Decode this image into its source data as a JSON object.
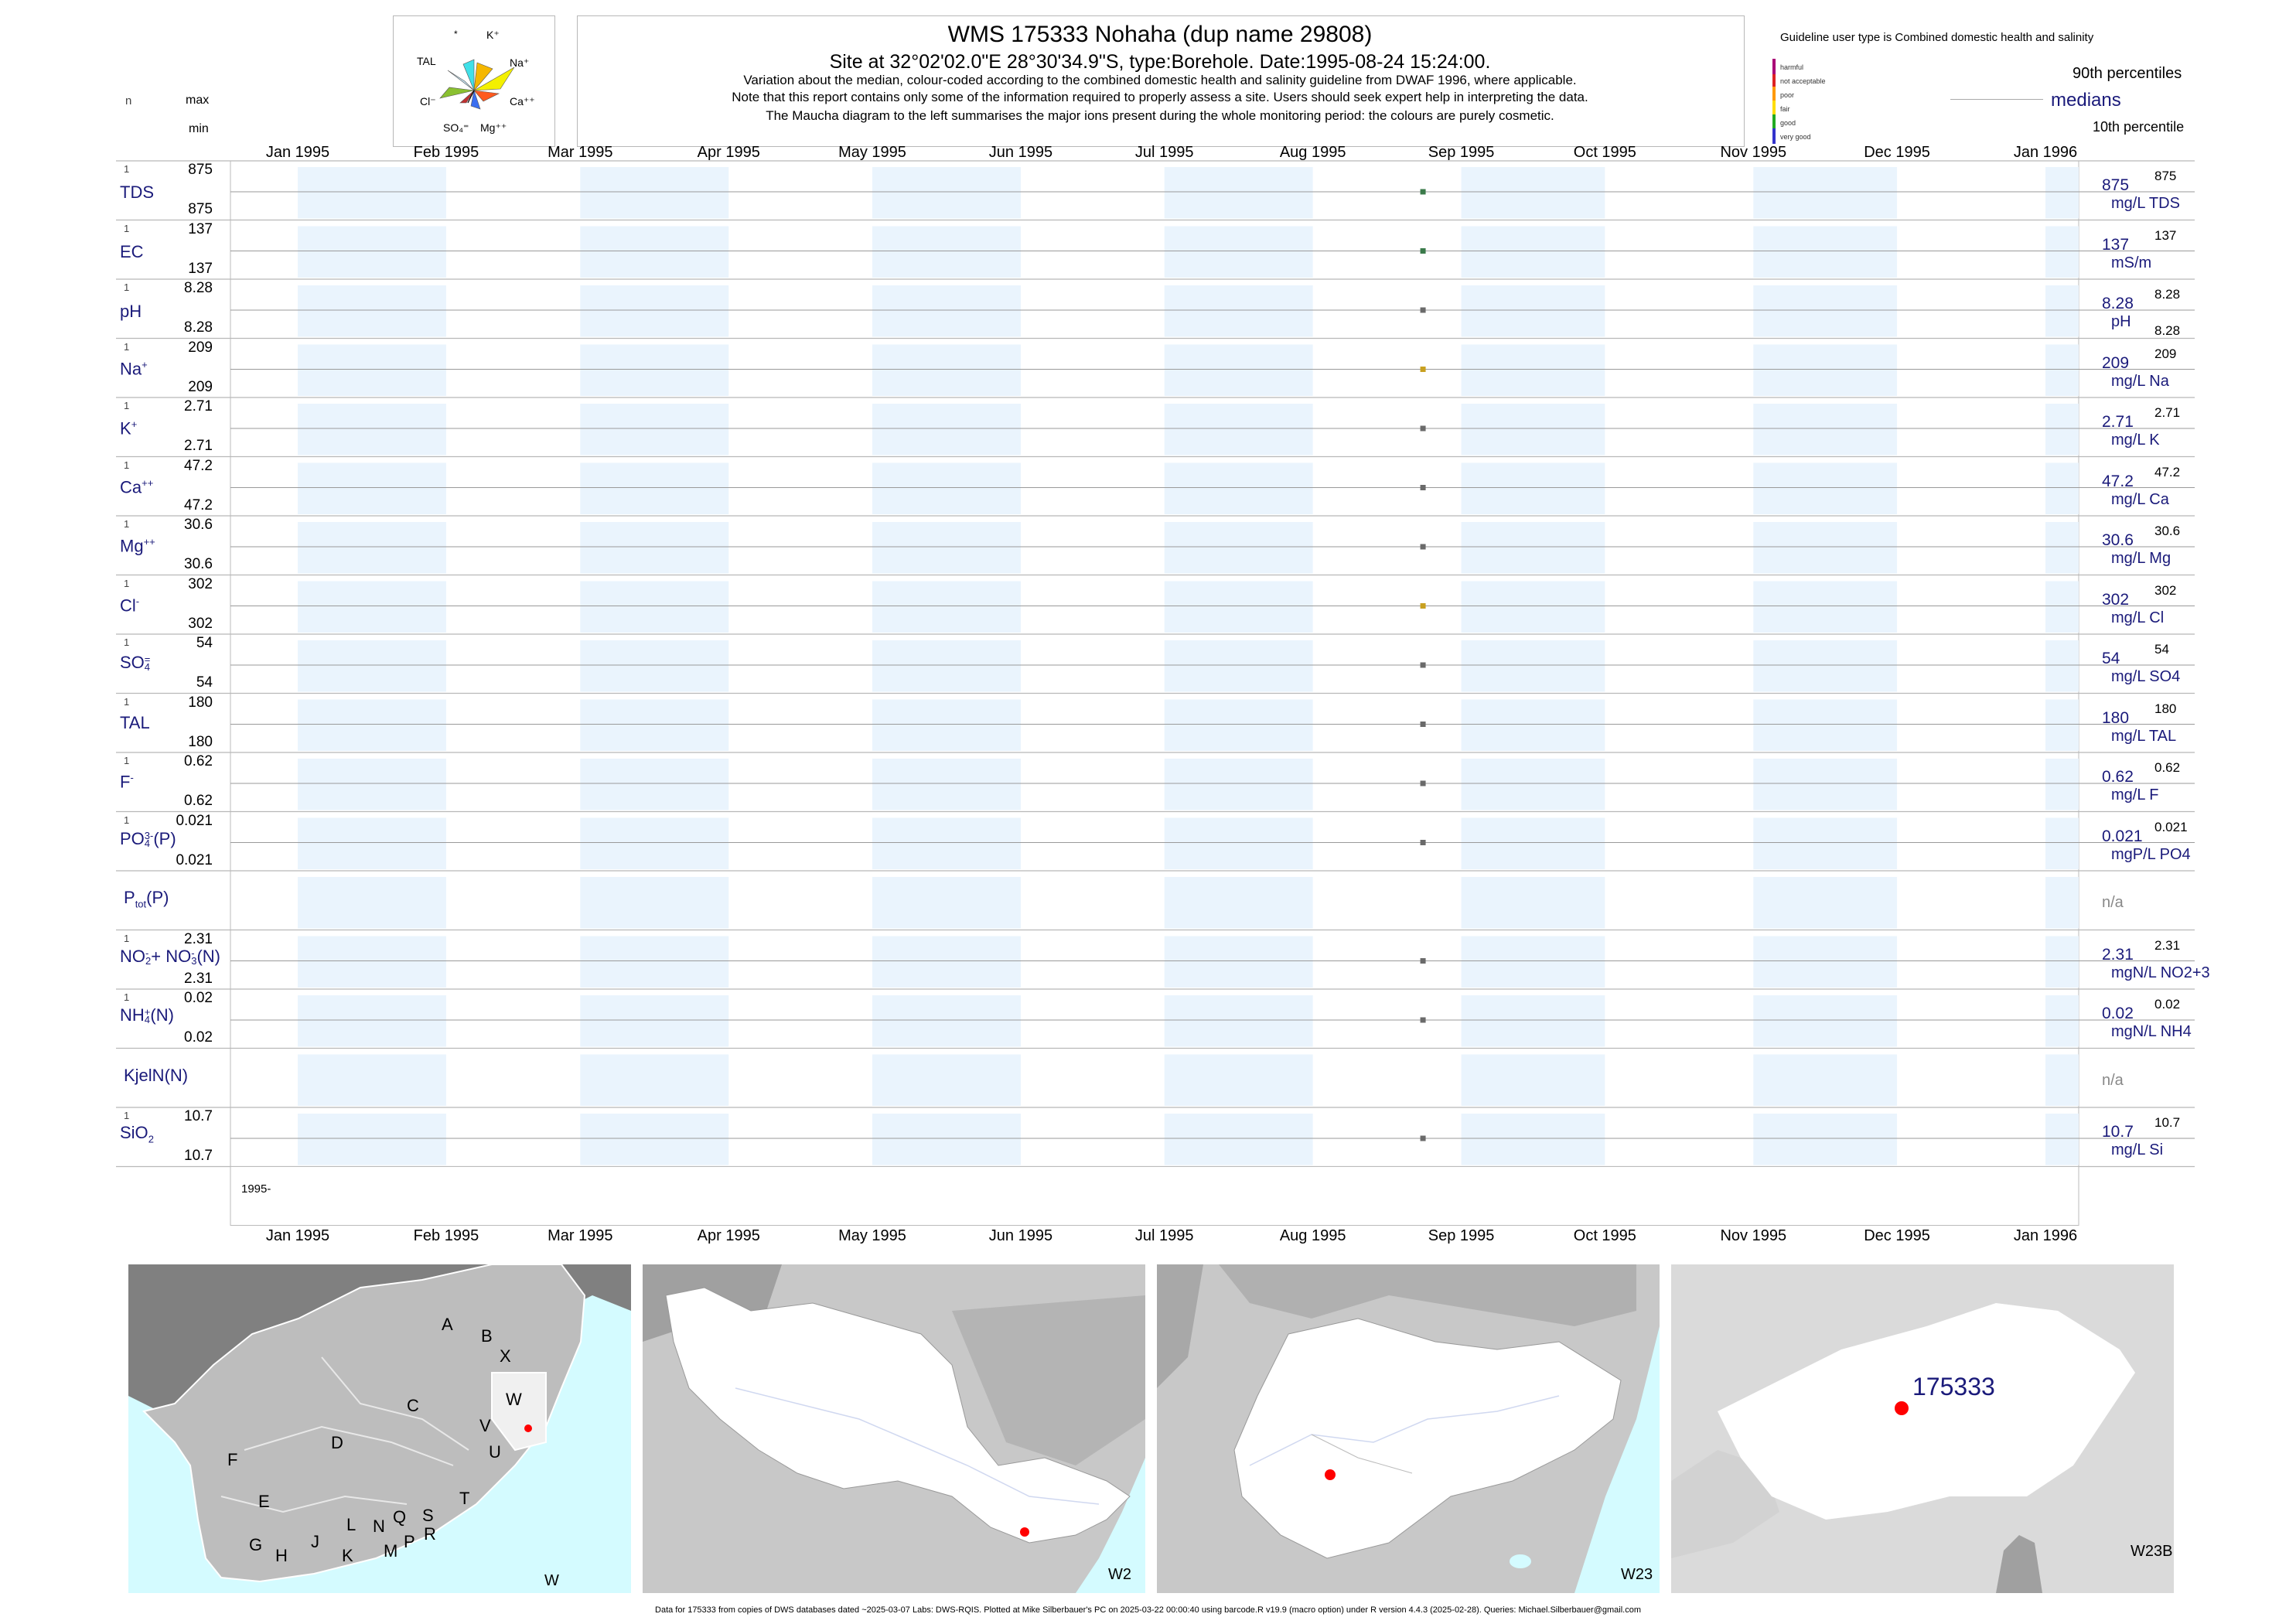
{
  "header": {
    "title": "WMS 175333  Nohaha (dup name 29808)",
    "subtitle": "Site at 32°02'02.0\"E 28°30'34.9\"S, type:Borehole. Date:1995-08-24 15:24:00.",
    "line1": "Variation about the median,  colour-coded according to the combined domestic health and salinity guideline from DWAF 1996, where applicable.",
    "line2": "Note that this report contains only some of the information required to properly assess a site. Users should seek expert help in interpreting the data.",
    "line3": "The Maucha diagram to the left summarises the major ions present during the whole monitoring period: the colours are purely cosmetic."
  },
  "maucha": {
    "labels": [
      "*",
      "K⁺",
      "TAL",
      "Na⁺",
      "Cl⁻",
      "Ca⁺⁺",
      "SO₄⁼",
      "Mg⁺⁺"
    ]
  },
  "left_header": {
    "n": "n",
    "max": "max",
    "min": "min"
  },
  "guideline": {
    "title": "Guideline user type is Combined domestic health and salinity",
    "levels": [
      "harmful",
      "not acceptable",
      "poor",
      "fair",
      "good",
      "very good"
    ],
    "level_colors": [
      "#aa0077",
      "#dd2222",
      "#ff9900",
      "#ffdd00",
      "#22aa22",
      "#3333cc"
    ],
    "p90": "90th percentiles",
    "medians": "medians",
    "p10": "10th percentile"
  },
  "months": [
    "Jan 1995",
    "Feb 1995",
    "Mar 1995",
    "Apr 1995",
    "May 1995",
    "Jun 1995",
    "Jul 1995",
    "Aug 1995",
    "Sep 1995",
    "Oct 1995",
    "Nov 1995",
    "Dec 1995",
    "Jan 1996"
  ],
  "year_label": "1995-",
  "chart_data": {
    "type": "scatter",
    "sample_date": "1995-08-24",
    "x_range": [
      "1995-01-01",
      "1996-01-01"
    ],
    "series": [
      {
        "key": "TDS",
        "n": "1",
        "max": "875",
        "min": "875",
        "median": "875",
        "unit": "mg/L TDS",
        "r_max": "875",
        "r_min": "",
        "color": "#3a7a4a"
      },
      {
        "key": "EC",
        "n": "1",
        "max": "137",
        "min": "137",
        "median": "137",
        "unit": "mS/m",
        "r_max": "137",
        "r_min": "",
        "color": "#3a7a4a"
      },
      {
        "key": "pH",
        "n": "1",
        "max": "8.28",
        "min": "8.28",
        "median": "8.28",
        "unit": "pH",
        "r_max": "8.28",
        "r_min": "8.28",
        "color": "#6a6a6a"
      },
      {
        "key": "Na",
        "n": "1",
        "max": "209",
        "min": "209",
        "median": "209",
        "unit": "mg/L Na",
        "r_max": "209",
        "r_min": "",
        "color": "#c8a020"
      },
      {
        "key": "K",
        "n": "1",
        "max": "2.71",
        "min": "2.71",
        "median": "2.71",
        "unit": "mg/L K",
        "r_max": "2.71",
        "r_min": "",
        "color": "#6a6a6a"
      },
      {
        "key": "Ca",
        "n": "1",
        "max": "47.2",
        "min": "47.2",
        "median": "47.2",
        "unit": "mg/L Ca",
        "r_max": "47.2",
        "r_min": "",
        "color": "#6a6a6a"
      },
      {
        "key": "Mg",
        "n": "1",
        "max": "30.6",
        "min": "30.6",
        "median": "30.6",
        "unit": "mg/L Mg",
        "r_max": "30.6",
        "r_min": "",
        "color": "#6a6a6a"
      },
      {
        "key": "Cl",
        "n": "1",
        "max": "302",
        "min": "302",
        "median": "302",
        "unit": "mg/L Cl",
        "r_max": "302",
        "r_min": "",
        "color": "#c8a020"
      },
      {
        "key": "SO4",
        "n": "1",
        "max": "54",
        "min": "54",
        "median": "54",
        "unit": "mg/L SO4",
        "r_max": "54",
        "r_min": "",
        "color": "#6a6a6a"
      },
      {
        "key": "TAL",
        "n": "1",
        "max": "180",
        "min": "180",
        "median": "180",
        "unit": "mg/L TAL",
        "r_max": "180",
        "r_min": "",
        "color": "#6a6a6a"
      },
      {
        "key": "F",
        "n": "1",
        "max": "0.62",
        "min": "0.62",
        "median": "0.62",
        "unit": "mg/L F",
        "r_max": "0.62",
        "r_min": "",
        "color": "#6a6a6a"
      },
      {
        "key": "PO4",
        "n": "1",
        "max": "0.021",
        "min": "0.021",
        "median": "0.021",
        "unit": "mgP/L PO4",
        "r_max": "0.021",
        "r_min": "",
        "color": "#6a6a6a"
      },
      {
        "key": "Ptot",
        "n": "",
        "max": "",
        "min": "",
        "median": "n/a",
        "unit": "",
        "r_max": "",
        "r_min": "",
        "color": ""
      },
      {
        "key": "NO3",
        "n": "1",
        "max": "2.31",
        "min": "2.31",
        "median": "2.31",
        "unit": "mgN/L NO2+3",
        "r_max": "2.31",
        "r_min": "",
        "color": "#6a6a6a"
      },
      {
        "key": "NH4",
        "n": "1",
        "max": "0.02",
        "min": "0.02",
        "median": "0.02",
        "unit": "mgN/L NH4",
        "r_max": "0.02",
        "r_min": "",
        "color": "#6a6a6a"
      },
      {
        "key": "KjelN",
        "n": "",
        "max": "",
        "min": "",
        "median": "n/a",
        "unit": "",
        "r_max": "",
        "r_min": "",
        "color": ""
      },
      {
        "key": "SiO2",
        "n": "1",
        "max": "10.7",
        "min": "10.7",
        "median": "10.7",
        "unit": "mg/L Si",
        "r_max": "10.7",
        "r_min": "",
        "color": "#6a6a6a"
      }
    ]
  },
  "maps": {
    "m1_label": "W",
    "m2_label": "W2",
    "m3_label": "W23",
    "m4_label": "W23B",
    "site_id": "175333",
    "drainage_letters": [
      "A",
      "B",
      "X",
      "W",
      "C",
      "V",
      "D",
      "U",
      "F",
      "T",
      "E",
      "L",
      "N",
      "Q",
      "S",
      "G",
      "H",
      "J",
      "K",
      "M",
      "P",
      "R"
    ]
  },
  "footer": "Data for 175333 from copies of DWS databases dated ~2025-03-07 Labs: DWS-RQIS. Plotted at Mike Silberbauer's PC on 2025-03-22 00:00:40 using barcode.R v19.9 (macro option) under R version 4.4.3 (2025-02-28). Queries: Michael.Silberbauer@gmail.com"
}
